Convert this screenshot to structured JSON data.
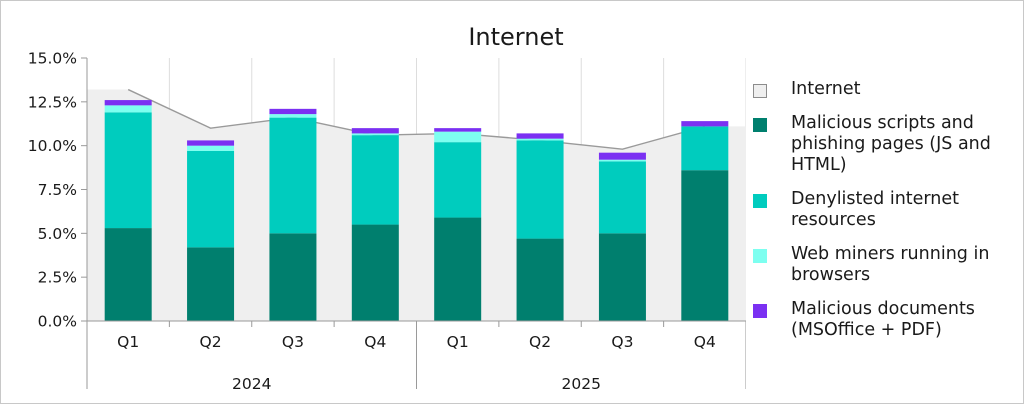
{
  "chart_data": {
    "type": "bar",
    "title": "Internet",
    "y_ticks": [
      "0.0%",
      "2.5%",
      "5.0%",
      "7.5%",
      "10.0%",
      "12.5%",
      "15.0%"
    ],
    "ylim": [
      0,
      15
    ],
    "categories": [
      "Q1",
      "Q2",
      "Q3",
      "Q4",
      "Q1",
      "Q2",
      "Q3",
      "Q4"
    ],
    "groups": [
      {
        "label": "2024",
        "span": 4
      },
      {
        "label": "2025",
        "span": 4
      }
    ],
    "grid": "vertical",
    "legend_position": "right",
    "total_series": {
      "name": "Internet",
      "type": "area",
      "color": "#efefef",
      "line_color": "#9a9a9a",
      "values": [
        13.2,
        11.0,
        11.6,
        10.6,
        10.7,
        10.3,
        9.8,
        11.1
      ]
    },
    "series": [
      {
        "name": "Malicious scripts and\nphishing pages (JS and\nHTML)",
        "color": "#007f6e",
        "values": [
          5.3,
          4.2,
          5.0,
          5.5,
          5.9,
          4.7,
          5.0,
          8.6
        ]
      },
      {
        "name": "Denylisted internet\nresources",
        "color": "#00ccbe",
        "values": [
          6.6,
          5.5,
          6.6,
          5.1,
          4.3,
          5.6,
          4.1,
          2.5
        ]
      },
      {
        "name": "Web miners running in\nbrowsers",
        "color": "#7dfff0",
        "values": [
          0.4,
          0.3,
          0.2,
          0.1,
          0.6,
          0.1,
          0.1,
          0.0
        ]
      },
      {
        "name": "Malicious documents\n(MSOffice + PDF)",
        "color": "#7b30f2",
        "values": [
          0.3,
          0.3,
          0.3,
          0.3,
          0.2,
          0.3,
          0.4,
          0.3
        ]
      }
    ]
  }
}
